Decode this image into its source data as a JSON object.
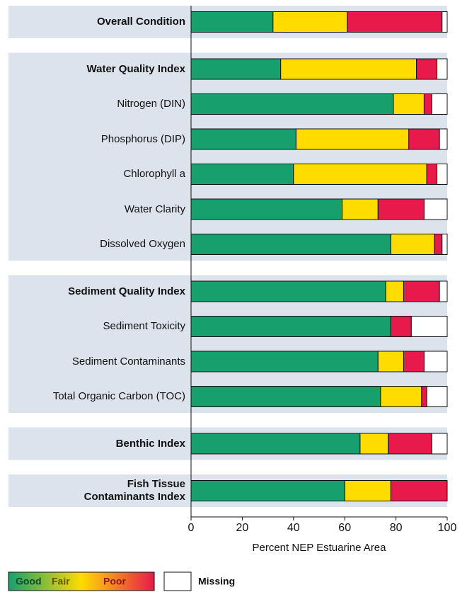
{
  "chart_data": {
    "type": "stacked_barh",
    "categories": [
      "Overall Condition",
      "Water Quality Index",
      "Nitrogen (DIN)",
      "Phosphorus (DIP)",
      "Chlorophyll a",
      "Water Clarity",
      "Dissolved Oxygen",
      "Sediment Quality Index",
      "Sediment Toxicity",
      "Sediment Contaminants",
      "Total Organic Carbon (TOC)",
      "Benthic Index",
      "Fish Tissue\nContaminants Index"
    ],
    "category_bold": [
      true,
      true,
      false,
      false,
      false,
      false,
      false,
      true,
      false,
      false,
      false,
      true,
      true
    ],
    "series": [
      {
        "name": "Good",
        "color": "#17a06e",
        "values": [
          32,
          35,
          79,
          41,
          40,
          59,
          78,
          76,
          78,
          73,
          74,
          66,
          60
        ]
      },
      {
        "name": "Fair",
        "color": "#fedc00",
        "values": [
          29,
          53,
          12,
          44,
          52,
          14,
          17,
          7,
          0,
          10,
          16,
          11,
          18
        ]
      },
      {
        "name": "Poor",
        "color": "#e8194b",
        "values": [
          37,
          8,
          3,
          12,
          4,
          18,
          3,
          14,
          8,
          8,
          2,
          17,
          22
        ]
      },
      {
        "name": "Missing",
        "color": "#ffffff",
        "values": [
          2,
          4,
          6,
          3,
          4,
          9,
          2,
          3,
          14,
          9,
          8,
          6,
          0
        ]
      }
    ],
    "xlabel": "Percent NEP Estuarine Area",
    "xlim": [
      0,
      100
    ],
    "xticks": [
      0,
      20,
      40,
      60,
      80,
      100
    ]
  }
}
